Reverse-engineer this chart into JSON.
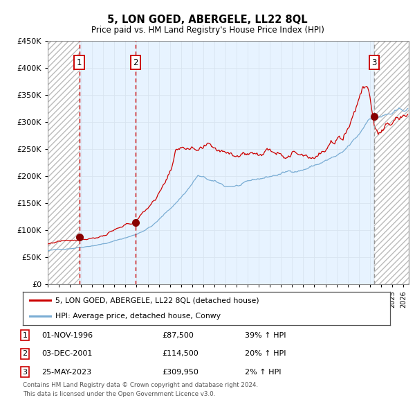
{
  "title": "5, LON GOED, ABERGELE, LL22 8QL",
  "subtitle": "Price paid vs. HM Land Registry's House Price Index (HPI)",
  "footer_line1": "Contains HM Land Registry data © Crown copyright and database right 2024.",
  "footer_line2": "This data is licensed under the Open Government Licence v3.0.",
  "legend_red": "5, LON GOED, ABERGELE, LL22 8QL (detached house)",
  "legend_blue": "HPI: Average price, detached house, Conwy",
  "sales": [
    {
      "num": 1,
      "date": "01-NOV-1996",
      "price": 87500,
      "hpi_pct": "39% ↑ HPI"
    },
    {
      "num": 2,
      "date": "03-DEC-2001",
      "price": 114500,
      "hpi_pct": "20% ↑ HPI"
    },
    {
      "num": 3,
      "date": "25-MAY-2023",
      "price": 309950,
      "hpi_pct": "2% ↑ HPI"
    }
  ],
  "sale_dates_decimal": [
    1996.835,
    2001.921,
    2023.396
  ],
  "xmin": 1994.0,
  "xmax": 2026.5,
  "ymin": 0,
  "ymax": 450000,
  "yticks": [
    0,
    50000,
    100000,
    150000,
    200000,
    250000,
    300000,
    350000,
    400000,
    450000
  ],
  "ytick_labels": [
    "£0",
    "£50K",
    "£100K",
    "£150K",
    "£200K",
    "£250K",
    "£300K",
    "£350K",
    "£400K",
    "£450K"
  ],
  "background_color": "#ffffff",
  "plot_bg_color": "#ffffff",
  "grid_color": "#cccccc",
  "red_line_color": "#cc0000",
  "blue_line_color": "#7aadd4",
  "shade_color": "#ddeeff",
  "sale_marker_color": "#880000",
  "box_edge_color": "#cc0000"
}
